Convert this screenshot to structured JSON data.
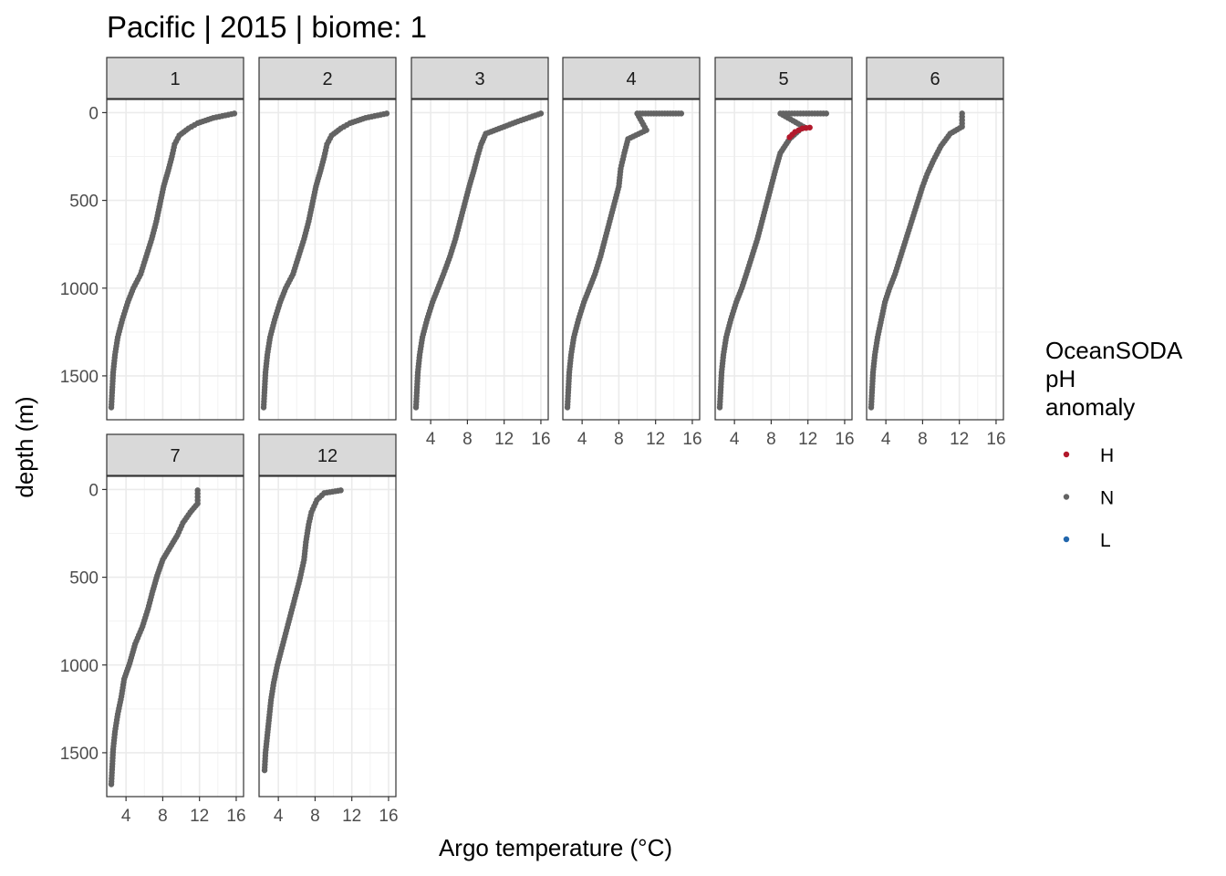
{
  "title": "Pacific | 2015 | biome: 1",
  "chart_data": {
    "type": "scatter",
    "title": "Pacific | 2015 | biome: 1",
    "xlabel": "Argo temperature (°C)",
    "ylabel": "depth (m)",
    "xlim": [
      1.9,
      16.8
    ],
    "ylim": [
      1750,
      -75
    ],
    "y_reversed": true,
    "x_ticks": [
      4,
      8,
      12,
      16
    ],
    "y_ticks": [
      0,
      500,
      1000,
      1500
    ],
    "x_tick_labels": [
      "4",
      "8",
      "12",
      "16"
    ],
    "y_tick_labels": [
      "0",
      "500",
      "1000",
      "1500"
    ],
    "grid": true,
    "legend": {
      "title_lines": [
        "OceanSODA",
        "pH",
        "anomaly"
      ],
      "position": "right",
      "entries": [
        {
          "label": "H",
          "color": "#B2182B"
        },
        {
          "label": "N",
          "color": "#636363"
        },
        {
          "label": "L",
          "color": "#2166AC"
        }
      ]
    },
    "panels": [
      {
        "label": "1",
        "series": [
          {
            "name": "N",
            "points": [
              [
                15.8,
                5
              ],
              [
                13.5,
                30
              ],
              [
                11.8,
                60
              ],
              [
                10.8,
                90
              ],
              [
                9.8,
                130
              ],
              [
                9.3,
                180
              ],
              [
                9.0,
                250
              ],
              [
                8.6,
                330
              ],
              [
                8.1,
                420
              ],
              [
                7.7,
                520
              ],
              [
                7.3,
                620
              ],
              [
                6.8,
                720
              ],
              [
                6.2,
                820
              ],
              [
                5.6,
                920
              ],
              [
                4.8,
                1000
              ],
              [
                4.2,
                1080
              ],
              [
                3.6,
                1180
              ],
              [
                3.1,
                1280
              ],
              [
                2.8,
                1380
              ],
              [
                2.6,
                1480
              ],
              [
                2.5,
                1580
              ],
              [
                2.4,
                1680
              ]
            ]
          }
        ]
      },
      {
        "label": "2",
        "series": [
          {
            "name": "N",
            "points": [
              [
                15.8,
                5
              ],
              [
                13.5,
                30
              ],
              [
                11.8,
                60
              ],
              [
                10.8,
                90
              ],
              [
                9.8,
                130
              ],
              [
                9.3,
                180
              ],
              [
                9.0,
                250
              ],
              [
                8.6,
                330
              ],
              [
                8.1,
                420
              ],
              [
                7.7,
                520
              ],
              [
                7.3,
                620
              ],
              [
                6.8,
                720
              ],
              [
                6.2,
                820
              ],
              [
                5.6,
                920
              ],
              [
                4.8,
                1000
              ],
              [
                4.2,
                1080
              ],
              [
                3.6,
                1180
              ],
              [
                3.1,
                1280
              ],
              [
                2.8,
                1380
              ],
              [
                2.6,
                1480
              ],
              [
                2.5,
                1580
              ],
              [
                2.4,
                1680
              ]
            ]
          }
        ]
      },
      {
        "label": "3",
        "series": [
          {
            "name": "N",
            "points": [
              [
                16.0,
                5
              ],
              [
                13.5,
                50
              ],
              [
                12.0,
                80
              ],
              [
                10.0,
                120
              ],
              [
                9.5,
                180
              ],
              [
                9.1,
                250
              ],
              [
                8.7,
                330
              ],
              [
                8.2,
                420
              ],
              [
                7.7,
                520
              ],
              [
                7.2,
                620
              ],
              [
                6.7,
                720
              ],
              [
                6.1,
                820
              ],
              [
                5.4,
                920
              ],
              [
                4.8,
                1000
              ],
              [
                4.2,
                1080
              ],
              [
                3.6,
                1180
              ],
              [
                3.1,
                1280
              ],
              [
                2.8,
                1380
              ],
              [
                2.6,
                1480
              ],
              [
                2.5,
                1580
              ],
              [
                2.4,
                1680
              ]
            ]
          }
        ]
      },
      {
        "label": "4",
        "series": [
          {
            "name": "N",
            "points": [
              [
                14.8,
                5
              ],
              [
                10.0,
                5
              ],
              [
                11.0,
                100
              ],
              [
                9.0,
                150
              ],
              [
                8.6,
                230
              ],
              [
                8.2,
                320
              ],
              [
                8.0,
                420
              ],
              [
                7.5,
                520
              ],
              [
                7.0,
                620
              ],
              [
                6.5,
                720
              ],
              [
                6.0,
                820
              ],
              [
                5.4,
                920
              ],
              [
                4.8,
                1000
              ],
              [
                4.2,
                1080
              ],
              [
                3.6,
                1180
              ],
              [
                3.1,
                1280
              ],
              [
                2.8,
                1380
              ],
              [
                2.6,
                1480
              ],
              [
                2.5,
                1580
              ],
              [
                2.4,
                1680
              ]
            ]
          }
        ]
      },
      {
        "label": "5",
        "series": [
          {
            "name": "N",
            "points": [
              [
                14.0,
                5
              ],
              [
                9.0,
                5
              ],
              [
                11.5,
                80
              ],
              [
                10.0,
                150
              ],
              [
                9.0,
                230
              ],
              [
                8.5,
                320
              ],
              [
                8.0,
                420
              ],
              [
                7.5,
                520
              ],
              [
                7.0,
                620
              ],
              [
                6.5,
                720
              ],
              [
                5.9,
                820
              ],
              [
                5.3,
                920
              ],
              [
                4.8,
                1000
              ],
              [
                4.2,
                1080
              ],
              [
                3.6,
                1180
              ],
              [
                3.1,
                1280
              ],
              [
                2.8,
                1380
              ],
              [
                2.6,
                1480
              ],
              [
                2.5,
                1580
              ],
              [
                2.4,
                1680
              ]
            ]
          },
          {
            "name": "H",
            "points": [
              [
                10.0,
                140
              ],
              [
                10.6,
                110
              ],
              [
                11.4,
                90
              ],
              [
                12.2,
                85
              ]
            ]
          }
        ]
      },
      {
        "label": "6",
        "series": [
          {
            "name": "N",
            "points": [
              [
                12.3,
                5
              ],
              [
                12.3,
                80
              ],
              [
                11.0,
                120
              ],
              [
                10.0,
                190
              ],
              [
                9.2,
                270
              ],
              [
                8.5,
                350
              ],
              [
                8.0,
                420
              ],
              [
                7.4,
                520
              ],
              [
                6.8,
                620
              ],
              [
                6.2,
                720
              ],
              [
                5.6,
                820
              ],
              [
                5.0,
                920
              ],
              [
                4.4,
                1000
              ],
              [
                3.9,
                1080
              ],
              [
                3.5,
                1180
              ],
              [
                3.1,
                1280
              ],
              [
                2.8,
                1380
              ],
              [
                2.6,
                1480
              ],
              [
                2.5,
                1580
              ],
              [
                2.4,
                1680
              ]
            ]
          }
        ]
      },
      {
        "label": "7",
        "series": [
          {
            "name": "N",
            "points": [
              [
                11.8,
                5
              ],
              [
                11.8,
                80
              ],
              [
                11.0,
                130
              ],
              [
                10.2,
                190
              ],
              [
                9.6,
                260
              ],
              [
                8.8,
                330
              ],
              [
                8.0,
                400
              ],
              [
                7.4,
                490
              ],
              [
                6.9,
                580
              ],
              [
                6.4,
                680
              ],
              [
                5.8,
                780
              ],
              [
                5.0,
                880
              ],
              [
                4.4,
                990
              ],
              [
                3.8,
                1080
              ],
              [
                3.5,
                1180
              ],
              [
                3.1,
                1280
              ],
              [
                2.8,
                1380
              ],
              [
                2.6,
                1480
              ],
              [
                2.5,
                1580
              ],
              [
                2.4,
                1680
              ]
            ]
          }
        ]
      },
      {
        "label": "12",
        "series": [
          {
            "name": "N",
            "points": [
              [
                10.8,
                5
              ],
              [
                9.0,
                20
              ],
              [
                8.2,
                60
              ],
              [
                7.6,
                130
              ],
              [
                7.3,
                200
              ],
              [
                7.0,
                300
              ],
              [
                6.8,
                400
              ],
              [
                6.3,
                520
              ],
              [
                5.8,
                620
              ],
              [
                5.3,
                720
              ],
              [
                4.8,
                820
              ],
              [
                4.3,
                920
              ],
              [
                3.9,
                1000
              ],
              [
                3.5,
                1100
              ],
              [
                3.2,
                1200
              ],
              [
                3.0,
                1300
              ],
              [
                2.8,
                1400
              ],
              [
                2.6,
                1500
              ],
              [
                2.5,
                1600
              ]
            ]
          }
        ]
      }
    ]
  }
}
